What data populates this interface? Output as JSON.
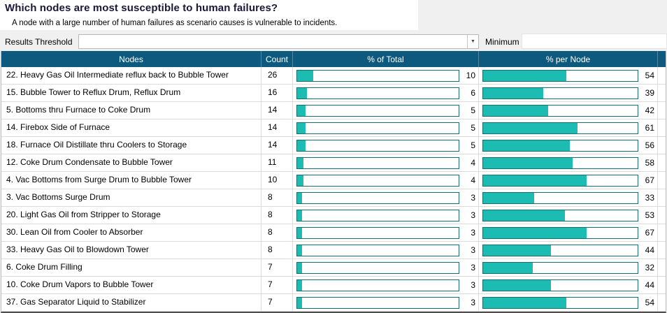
{
  "page": {
    "title": "Which nodes are most susceptible to human failures?",
    "subtitle": "A node with a large number of human failures as scenario causes is vulnerable to incidents.",
    "results_threshold_label": "Results Threshold",
    "results_threshold_value": "",
    "minimum_label": "Minimum",
    "minimum_value": "",
    "dropdown_icon": "dropdown-arrow"
  },
  "colors": {
    "header_bg": "#0e5a7e",
    "bar_fill": "#1cbcb2",
    "bar_border": "#156f6f",
    "accent_title": "#191938"
  },
  "table": {
    "columns": [
      "Nodes",
      "Count",
      "% of Total",
      "% per Node"
    ],
    "rows": [
      {
        "node": "22. Heavy Gas Oil Intermediate reflux back to Bubble Tower",
        "count": 26,
        "pct_of_total": 10,
        "pct_per_node": 54
      },
      {
        "node": "15. Bubble Tower  to Reflux Drum, Reflux Drum",
        "count": 16,
        "pct_of_total": 6,
        "pct_per_node": 39
      },
      {
        "node": "5. Bottoms thru Furnace to Coke Drum",
        "count": 14,
        "pct_of_total": 5,
        "pct_per_node": 42
      },
      {
        "node": "14. Firebox Side of Furnace",
        "count": 14,
        "pct_of_total": 5,
        "pct_per_node": 61
      },
      {
        "node": "18. Furnace Oil Distillate thru Coolers to Storage",
        "count": 14,
        "pct_of_total": 5,
        "pct_per_node": 56
      },
      {
        "node": "12. Coke Drum Condensate to Bubble Tower",
        "count": 11,
        "pct_of_total": 4,
        "pct_per_node": 58
      },
      {
        "node": "4. Vac Bottoms from Surge Drum to Bubble Tower",
        "count": 10,
        "pct_of_total": 4,
        "pct_per_node": 67
      },
      {
        "node": "3. Vac Bottoms Surge Drum",
        "count": 8,
        "pct_of_total": 3,
        "pct_per_node": 33
      },
      {
        "node": "20. Light Gas Oil from Stripper to Storage",
        "count": 8,
        "pct_of_total": 3,
        "pct_per_node": 53
      },
      {
        "node": "30. Lean Oil from Cooler to Absorber",
        "count": 8,
        "pct_of_total": 3,
        "pct_per_node": 67
      },
      {
        "node": "33. Heavy Gas Oil to Blowdown Tower",
        "count": 8,
        "pct_of_total": 3,
        "pct_per_node": 44
      },
      {
        "node": "6. Coke Drum Filling",
        "count": 7,
        "pct_of_total": 3,
        "pct_per_node": 32
      },
      {
        "node": "10. Coke Drum Vapors to Bubble Tower",
        "count": 7,
        "pct_of_total": 3,
        "pct_per_node": 44
      },
      {
        "node": "37. Gas Separator Liquid to Stabilizer",
        "count": 7,
        "pct_of_total": 3,
        "pct_per_node": 54
      }
    ]
  },
  "chart_data": {
    "type": "bar",
    "categories": [
      "22. Heavy Gas Oil Intermediate reflux back to Bubble Tower",
      "15. Bubble Tower  to Reflux Drum, Reflux Drum",
      "5. Bottoms thru Furnace to Coke Drum",
      "14. Firebox Side of Furnace",
      "18. Furnace Oil Distillate thru Coolers to Storage",
      "12. Coke Drum Condensate to Bubble Tower",
      "4. Vac Bottoms from Surge Drum to Bubble Tower",
      "3. Vac Bottoms Surge Drum",
      "20. Light Gas Oil from Stripper to Storage",
      "30. Lean Oil from Cooler to Absorber",
      "33. Heavy Gas Oil to Blowdown Tower",
      "6. Coke Drum Filling",
      "10. Coke Drum Vapors to Bubble Tower",
      "37. Gas Separator Liquid to Stabilizer"
    ],
    "series": [
      {
        "name": "Count",
        "values": [
          26,
          16,
          14,
          14,
          14,
          11,
          10,
          8,
          8,
          8,
          8,
          7,
          7,
          7
        ]
      },
      {
        "name": "% of Total",
        "values": [
          10,
          6,
          5,
          5,
          5,
          4,
          4,
          3,
          3,
          3,
          3,
          3,
          3,
          3
        ]
      },
      {
        "name": "% per Node",
        "values": [
          54,
          39,
          42,
          61,
          56,
          58,
          67,
          33,
          53,
          67,
          44,
          32,
          44,
          54
        ]
      }
    ],
    "title": "Which nodes are most susceptible to human failures?",
    "xlabel": "Nodes",
    "ylabel": "",
    "value_range": [
      0,
      100
    ],
    "grid": false,
    "legend_position": "table-columns"
  }
}
